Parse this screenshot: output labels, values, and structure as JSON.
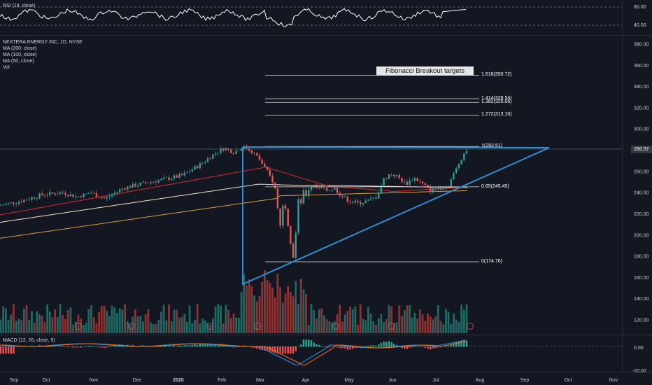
{
  "rsi": {
    "legend": "RSI (14, close)",
    "ticks": [
      "80.00",
      "40.00"
    ]
  },
  "main": {
    "symbol_legend": "NEXTERA ENERGY INC, 1D, NYSE",
    "ma200_legend": "MA (200, close)",
    "ma100_legend": "MA (100, close)",
    "ma50_legend": "MA (50, close)",
    "vol_legend": "Vol",
    "price_ticks": [
      "380.00",
      "360.00",
      "340.00",
      "320.00",
      "300.00",
      "280.00",
      "260.00",
      "240.00",
      "220.00",
      "200.00",
      "180.00",
      "160.00",
      "140.00",
      "120.00"
    ],
    "current_price": "280.97",
    "fib_title": "Fibonacci Breakout targets",
    "fib_levels": [
      {
        "label": "1.618(350.72)",
        "value": 350.72
      },
      {
        "label": "1.414(328.54)",
        "value": 328.54
      },
      {
        "label": "1.382(325.06)",
        "value": 325.06
      },
      {
        "label": "1.272(313.10)",
        "value": 313.1
      },
      {
        "label": "1(283.51)",
        "value": 283.51
      },
      {
        "label": "0.65(245.45)",
        "value": 245.45
      },
      {
        "label": "0(174.76)",
        "value": 174.76
      }
    ]
  },
  "macd": {
    "legend": "MACD (12, 26, close, 9)",
    "ticks": [
      "0.00",
      "-20.00"
    ]
  },
  "time_axis": [
    "Sep",
    "Oct",
    "Nov",
    "Dec",
    "2020",
    "Feb",
    "Mar",
    "Apr",
    "May",
    "Jun",
    "Jul",
    "Aug",
    "Sep",
    "Oct",
    "Nov"
  ],
  "colors": {
    "background": "#131722",
    "up": "#26a69a",
    "down": "#ef5350",
    "triangle": "#2e8fd6",
    "ma200": "#f7e7c4",
    "ma100": "#e1ad4a",
    "ma50": "#e53935"
  }
}
